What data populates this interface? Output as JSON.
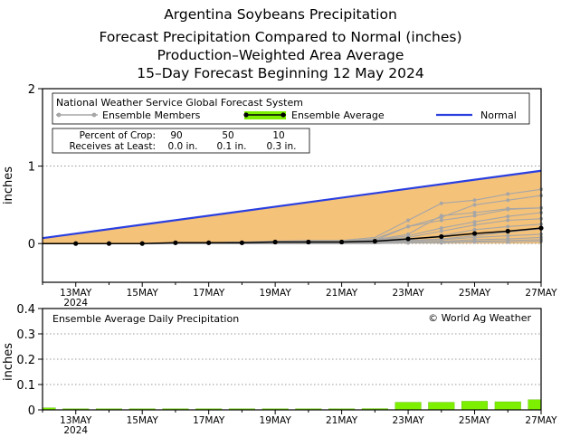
{
  "titles": [
    "Argentina Soybeans Precipitation",
    "Forecast Precipitation Compared to Normal (inches)",
    "Production–Weighted Area Average",
    "15–Day Forecast Beginning 12 May 2024"
  ],
  "chart_data": [
    {
      "type": "line",
      "title": "Forecast Precipitation Compared to Normal (inches)",
      "ylabel": "inches",
      "xlabel": "",
      "ylim": [
        -0.5,
        2
      ],
      "xlim": [
        0,
        15
      ],
      "yticks": [
        0,
        1,
        2
      ],
      "xticks": [
        {
          "x": 1,
          "label": "13MAY"
        },
        {
          "x": 3,
          "label": "15MAY"
        },
        {
          "x": 5,
          "label": "17MAY"
        },
        {
          "x": 7,
          "label": "19MAY"
        },
        {
          "x": 9,
          "label": "21MAY"
        },
        {
          "x": 11,
          "label": "23MAY"
        },
        {
          "x": 13,
          "label": "25MAY"
        },
        {
          "x": 15,
          "label": "27MAY"
        }
      ],
      "year_label": "2024",
      "source": "National Weather Service Global Forecast System",
      "legend": {
        "members": "Ensemble Members",
        "average": "Ensemble Average",
        "normal": "Normal"
      },
      "crop_table": {
        "row1_label": "Percent of Crop:",
        "row2_label": "Receives at Least:",
        "percents": [
          "90",
          "50",
          "10"
        ],
        "amounts": [
          "0.0 in.",
          "0.1 in.",
          "0.3 in."
        ]
      },
      "colors": {
        "normal": "#2a3fe0",
        "average": "#000000",
        "members": "#a6a6a6",
        "deficit_fill": "#f5c27a",
        "daily_bar": "#7cf000"
      },
      "normal": {
        "x": [
          0,
          15
        ],
        "y": [
          0.07,
          0.94
        ]
      },
      "ensemble_average": {
        "x": [
          1,
          2,
          3,
          4,
          5,
          6,
          7,
          8,
          9,
          10,
          11,
          12,
          13,
          14,
          15
        ],
        "y": [
          0.0,
          0.0,
          0.0,
          0.01,
          0.01,
          0.01,
          0.02,
          0.02,
          0.02,
          0.03,
          0.06,
          0.09,
          0.13,
          0.16,
          0.2
        ]
      },
      "ensemble_members": [
        {
          "x": [
            0,
            1,
            2,
            3,
            4,
            5,
            6,
            7,
            8,
            9,
            10,
            11,
            12,
            13,
            14,
            15
          ],
          "y": [
            0,
            0,
            0,
            0,
            0.01,
            0.01,
            0.02,
            0.03,
            0.04,
            0.04,
            0.08,
            0.3,
            0.52,
            0.56,
            0.64,
            0.7
          ]
        },
        {
          "x": [
            0,
            1,
            2,
            3,
            4,
            5,
            6,
            7,
            8,
            9,
            10,
            11,
            12,
            13,
            14,
            15
          ],
          "y": [
            0,
            0,
            0,
            0,
            0.01,
            0.01,
            0.02,
            0.02,
            0.02,
            0.03,
            0.06,
            0.22,
            0.34,
            0.5,
            0.56,
            0.62
          ]
        },
        {
          "x": [
            0,
            1,
            2,
            3,
            4,
            5,
            6,
            7,
            8,
            9,
            10,
            11,
            12,
            13,
            14,
            15
          ],
          "y": [
            0,
            0,
            0,
            0,
            0,
            0.01,
            0.01,
            0.01,
            0.02,
            0.02,
            0.05,
            0.12,
            0.36,
            0.4,
            0.45,
            0.46
          ]
        },
        {
          "x": [
            0,
            1,
            2,
            3,
            4,
            5,
            6,
            7,
            8,
            9,
            10,
            11,
            12,
            13,
            14,
            15
          ],
          "y": [
            0,
            0,
            0,
            0,
            0,
            0.01,
            0.01,
            0.02,
            0.03,
            0.03,
            0.04,
            0.22,
            0.3,
            0.36,
            0.44,
            0.46
          ]
        },
        {
          "x": [
            0,
            1,
            2,
            3,
            4,
            5,
            6,
            7,
            8,
            9,
            10,
            11,
            12,
            13,
            14,
            15
          ],
          "y": [
            0,
            0,
            0,
            0,
            0,
            0,
            0.01,
            0.01,
            0.02,
            0.02,
            0.04,
            0.1,
            0.2,
            0.28,
            0.35,
            0.4
          ]
        },
        {
          "x": [
            0,
            1,
            2,
            3,
            4,
            5,
            6,
            7,
            8,
            9,
            10,
            11,
            12,
            13,
            14,
            15
          ],
          "y": [
            0,
            0,
            0,
            0,
            0,
            0,
            0.01,
            0.01,
            0.01,
            0.02,
            0.03,
            0.08,
            0.16,
            0.24,
            0.3,
            0.32
          ]
        },
        {
          "x": [
            0,
            1,
            2,
            3,
            4,
            5,
            6,
            7,
            8,
            9,
            10,
            11,
            12,
            13,
            14,
            15
          ],
          "y": [
            0,
            0,
            0,
            0,
            0,
            0,
            0,
            0.01,
            0.01,
            0.01,
            0.02,
            0.05,
            0.1,
            0.18,
            0.22,
            0.25
          ]
        },
        {
          "x": [
            0,
            1,
            2,
            3,
            4,
            5,
            6,
            7,
            8,
            9,
            10,
            11,
            12,
            13,
            14,
            15
          ],
          "y": [
            0,
            0,
            0,
            0,
            0,
            0,
            0,
            0,
            0.01,
            0.01,
            0.02,
            0.04,
            0.06,
            0.1,
            0.15,
            0.19
          ]
        },
        {
          "x": [
            0,
            1,
            2,
            3,
            4,
            5,
            6,
            7,
            8,
            9,
            10,
            11,
            12,
            13,
            14,
            15
          ],
          "y": [
            0,
            0,
            0,
            0,
            0,
            0,
            0,
            0,
            0,
            0.01,
            0.01,
            0.03,
            0.05,
            0.08,
            0.1,
            0.12
          ]
        },
        {
          "x": [
            0,
            1,
            2,
            3,
            4,
            5,
            6,
            7,
            8,
            9,
            10,
            11,
            12,
            13,
            14,
            15
          ],
          "y": [
            0,
            0,
            0,
            0,
            0,
            0,
            0,
            0,
            0,
            0,
            0.01,
            0.02,
            0.03,
            0.05,
            0.06,
            0.08
          ]
        },
        {
          "x": [
            0,
            1,
            2,
            3,
            4,
            5,
            6,
            7,
            8,
            9,
            10,
            11,
            12,
            13,
            14,
            15
          ],
          "y": [
            0,
            0,
            0,
            0,
            0,
            0,
            0,
            0,
            0,
            0,
            0,
            0.01,
            0.02,
            0.03,
            0.04,
            0.05
          ]
        },
        {
          "x": [
            0,
            1,
            2,
            3,
            4,
            5,
            6,
            7,
            8,
            9,
            10,
            11,
            12,
            13,
            14,
            15
          ],
          "y": [
            0,
            0,
            0,
            0,
            0,
            0,
            0,
            0,
            0,
            0,
            0,
            0.01,
            0.01,
            0.02,
            0.02,
            0.03
          ]
        }
      ]
    },
    {
      "type": "bar",
      "title": "Ensemble Average Daily Precipitation",
      "credit": "© World Ag Weather",
      "ylabel": "inches",
      "ylim": [
        0,
        0.4
      ],
      "yticks": [
        "0",
        "0.1",
        "0.2",
        "0.3",
        "0.4"
      ],
      "x": [
        0,
        1,
        2,
        3,
        4,
        5,
        6,
        7,
        8,
        9,
        10,
        11,
        12,
        13,
        14,
        15
      ],
      "values": [
        0.008,
        0.002,
        0.001,
        0.002,
        0.003,
        0.002,
        0.003,
        0.002,
        0.003,
        0.002,
        0.005,
        0.03,
        0.03,
        0.034,
        0.032,
        0.04
      ]
    }
  ]
}
